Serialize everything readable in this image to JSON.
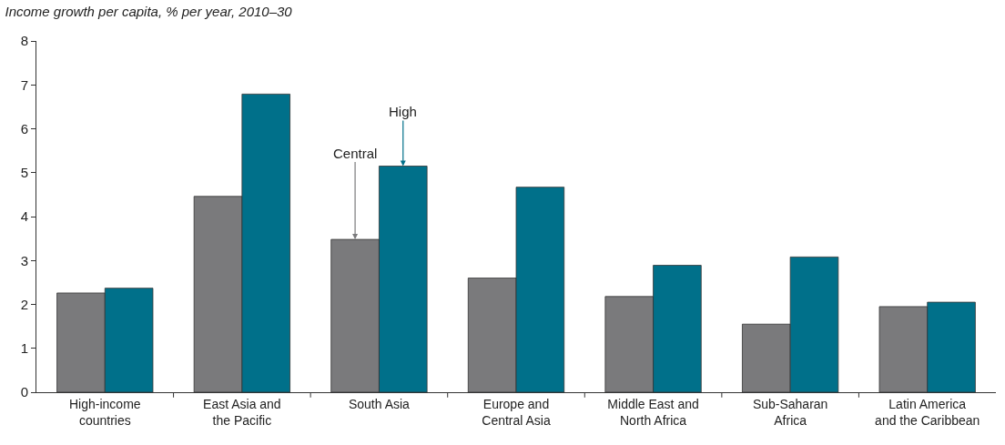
{
  "chart_data": {
    "type": "bar",
    "title": "Income growth per capita, % per year, 2010–30",
    "categories": [
      "High-income\ncountries",
      "East Asia and\nthe Pacific",
      "South Asia",
      "Europe and\nCentral Asia",
      "Middle East and\nNorth Africa",
      "Sub-Saharan\nAfrica",
      "Latin America\nand the Caribbean"
    ],
    "series": [
      {
        "color": "#7a7a7c",
        "values": [
          2.26,
          4.46,
          3.48,
          2.6,
          2.18,
          1.55,
          1.95
        ]
      },
      {
        "color": "#00708a",
        "values": [
          2.37,
          6.79,
          5.15,
          4.67,
          2.89,
          3.08,
          2.05
        ]
      }
    ],
    "annotations": [
      {
        "text": "Central",
        "y": 3.48
      },
      {
        "text": "High",
        "y": 5.15
      }
    ],
    "ylim": [
      0,
      8
    ],
    "yticks": [
      0,
      1,
      2,
      3,
      4,
      5,
      6,
      7,
      8
    ],
    "grid": false
  }
}
